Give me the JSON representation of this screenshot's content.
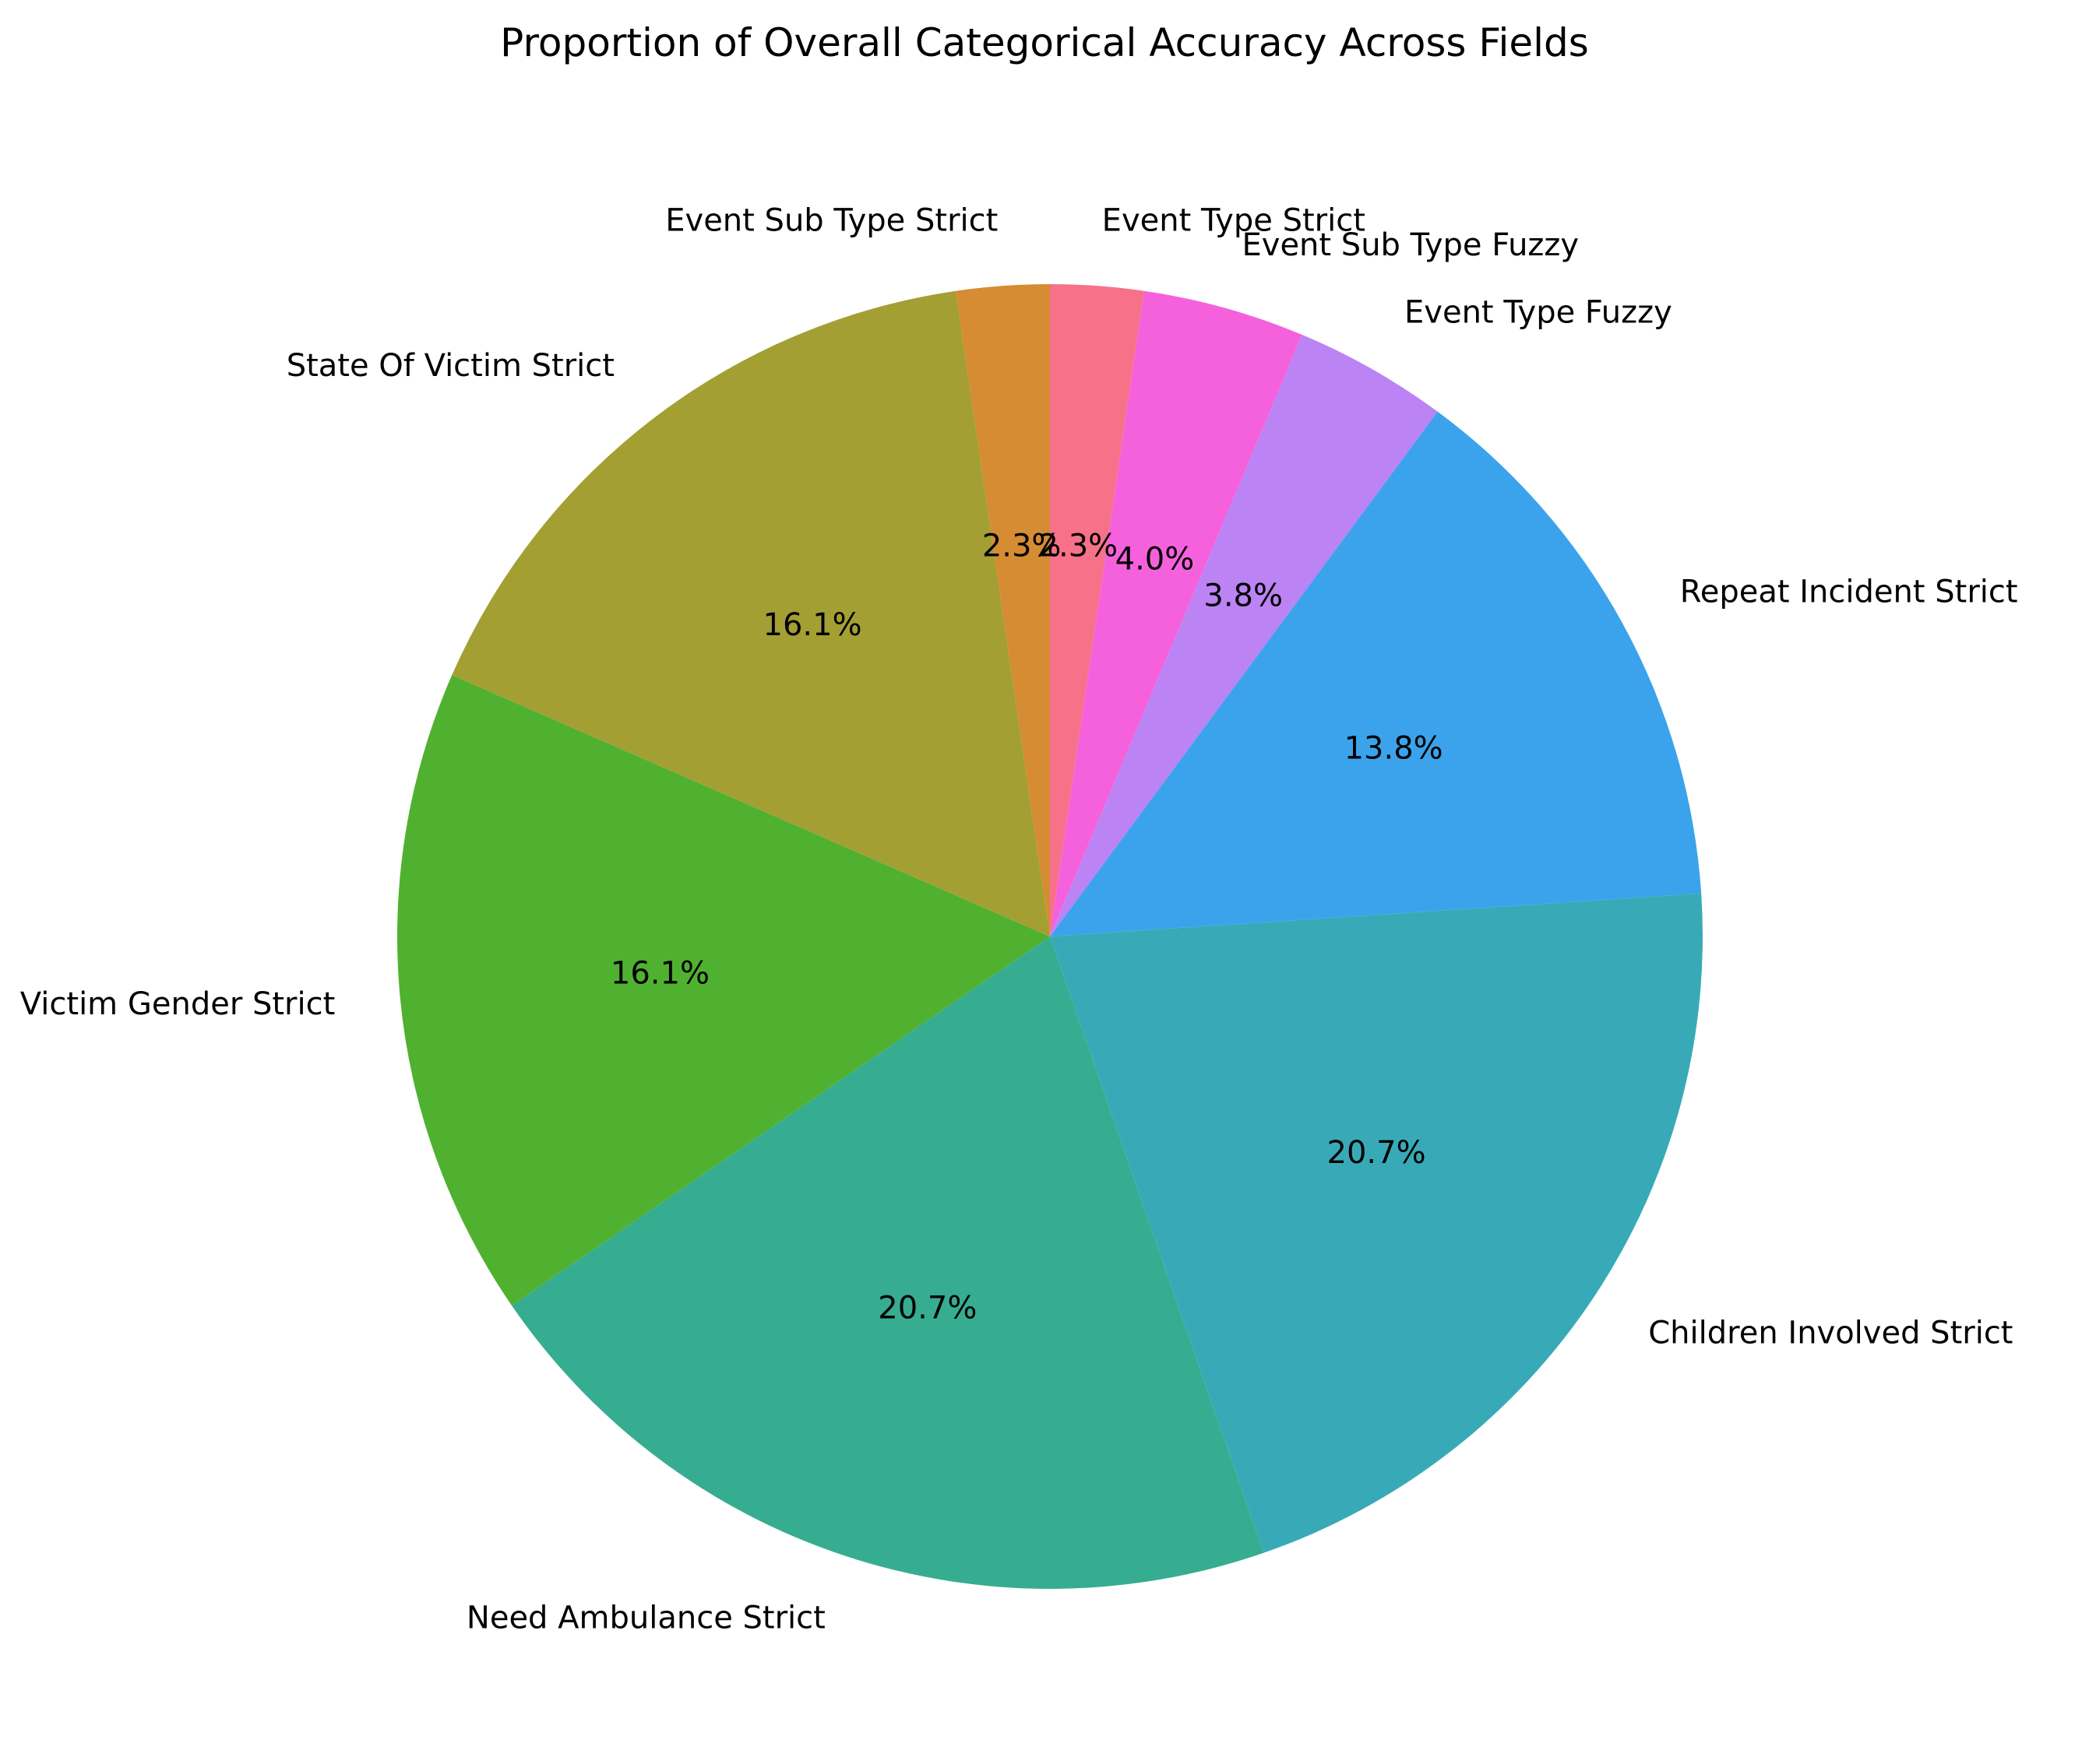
{
  "chart_data": {
    "type": "pie",
    "title": "Proportion of Overall Categorical Accuracy Across Fields",
    "start_angle_deg": 90,
    "direction": "clockwise",
    "slices": [
      {
        "label": "Event Type Strict",
        "value": 2.3,
        "pct_label": "2.3%",
        "color": "#f77189"
      },
      {
        "label": "Event Sub Type Fuzzy",
        "value": 4.0,
        "pct_label": "4.0%",
        "color": "#f561dd"
      },
      {
        "label": "Event Type Fuzzy",
        "value": 3.8,
        "pct_label": "3.8%",
        "color": "#bb83f4"
      },
      {
        "label": "Repeat Incident Strict",
        "value": 13.8,
        "pct_label": "13.8%",
        "color": "#3ba3ec"
      },
      {
        "label": "Children Involved Strict",
        "value": 20.7,
        "pct_label": "20.7%",
        "color": "#38aab7"
      },
      {
        "label": "Need Ambulance Strict",
        "value": 20.7,
        "pct_label": "20.7%",
        "color": "#36ad90"
      },
      {
        "label": "Victim Gender Strict",
        "value": 16.1,
        "pct_label": "16.1%",
        "color": "#50b131"
      },
      {
        "label": "State Of Victim Strict",
        "value": 16.1,
        "pct_label": "16.1%",
        "color": "#a39f33"
      },
      {
        "label": "Event Sub Type Strict",
        "value": 2.3,
        "pct_label": "2.3%",
        "color": "#d58c32"
      }
    ]
  }
}
